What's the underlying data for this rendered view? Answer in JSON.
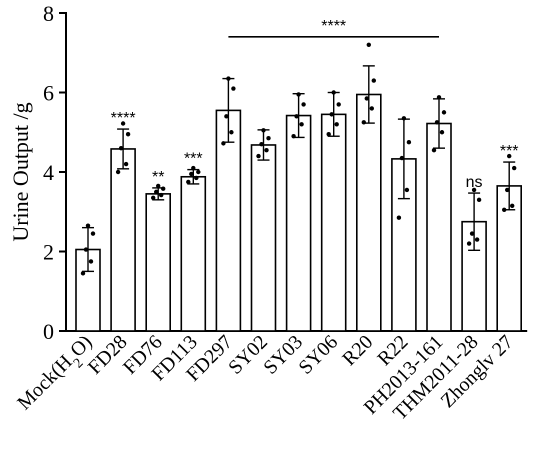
{
  "chart_data": {
    "type": "bar",
    "ylabel": "Urine Output /g",
    "ylim": [
      0,
      8
    ],
    "yticks": [
      0,
      2,
      4,
      6,
      8
    ],
    "grid": false,
    "categories": [
      "Mock(H2O)",
      "FD28",
      "FD76",
      "FD113",
      "FD297",
      "SY02",
      "SY03",
      "SY06",
      "R20",
      "R22",
      "PH2013-161",
      "THM2011-28",
      "Zhonglv 27"
    ],
    "values": [
      2.05,
      4.58,
      3.45,
      3.88,
      5.55,
      4.68,
      5.42,
      5.45,
      5.95,
      4.33,
      5.22,
      2.75,
      3.65
    ],
    "errors": [
      0.55,
      0.5,
      0.15,
      0.18,
      0.8,
      0.38,
      0.55,
      0.55,
      0.72,
      1.0,
      0.62,
      0.72,
      0.6
    ],
    "points": [
      [
        1.45,
        1.75,
        2.05,
        2.45,
        2.65
      ],
      [
        4.0,
        4.2,
        4.6,
        4.95,
        5.22
      ],
      [
        3.35,
        3.42,
        3.5,
        3.58,
        3.65
      ],
      [
        3.75,
        3.85,
        3.95,
        4.0,
        4.1
      ],
      [
        4.72,
        5.0,
        5.4,
        6.1,
        6.35
      ],
      [
        4.4,
        4.55,
        4.7,
        4.85,
        5.05
      ],
      [
        4.9,
        5.2,
        5.4,
        5.7,
        5.95
      ],
      [
        4.95,
        5.2,
        5.45,
        5.7,
        6.0
      ],
      [
        5.25,
        5.6,
        5.85,
        6.3,
        7.2
      ],
      [
        2.85,
        3.55,
        4.35,
        4.75,
        5.35
      ],
      [
        4.55,
        5.0,
        5.25,
        5.5,
        5.88
      ],
      [
        2.2,
        2.3,
        2.45,
        3.3,
        3.55
      ],
      [
        3.05,
        3.15,
        3.55,
        4.1,
        4.4
      ]
    ],
    "significance": [
      "",
      "****",
      "**",
      "***",
      "",
      "",
      "",
      "",
      "",
      "",
      "",
      "ns",
      "***"
    ],
    "bracket": {
      "label": "****",
      "from_index": 4,
      "to_index": 10,
      "y": 7.4
    }
  }
}
